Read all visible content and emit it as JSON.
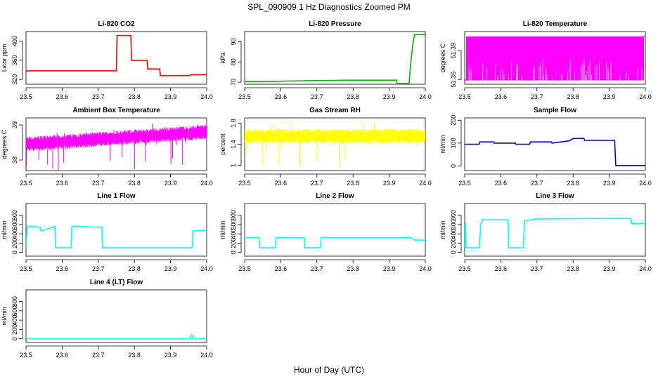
{
  "title": "SPL_090909  1 Hz Diagnostics Zoomed PM",
  "xlabel": "Hour of Day (UTC)",
  "chart_data": [
    {
      "type": "line",
      "title": "Li-820 CO2",
      "ylabel": "Licor ppm",
      "color": "#ff0000",
      "xlim": [
        23.5,
        24.0
      ],
      "ylim": [
        310,
        420
      ],
      "xticks": [
        "23.5",
        "23.6",
        "23.7",
        "23.8",
        "23.9",
        "24.0"
      ],
      "yticks": [
        320,
        360,
        400
      ],
      "x": [
        23.5,
        23.6,
        23.7,
        23.75,
        23.752,
        23.79,
        23.792,
        23.835,
        23.837,
        23.87,
        23.872,
        23.95,
        23.96,
        23.962,
        24.0
      ],
      "y": [
        338,
        338,
        338,
        338,
        412,
        412,
        360,
        360,
        342,
        342,
        328,
        328,
        330,
        330,
        330
      ]
    },
    {
      "type": "line",
      "title": "Li-820 Pressure",
      "ylabel": "kPa",
      "color": "#00b000",
      "xlim": [
        23.5,
        24.0
      ],
      "ylim": [
        69,
        95
      ],
      "xticks": [
        "23.5",
        "23.6",
        "23.7",
        "23.8",
        "23.9",
        "24.0"
      ],
      "yticks": [
        70,
        80,
        90
      ],
      "x": [
        23.5,
        23.6,
        23.7,
        23.8,
        23.85,
        23.92,
        23.922,
        23.955,
        23.96,
        23.965,
        23.97,
        24.0
      ],
      "y": [
        70.3,
        70.5,
        70.8,
        71.0,
        71.0,
        71.0,
        69.3,
        69.3,
        80,
        88,
        93.5,
        93.5
      ]
    },
    {
      "type": "line",
      "title": "Li-820 Temperature",
      "ylabel": "degrees C",
      "color": "#ff00ff",
      "xlim": [
        23.5,
        24.0
      ],
      "ylim": [
        51.355,
        51.41
      ],
      "xticks": [
        "23.5",
        "23.6",
        "23.7",
        "23.8",
        "23.9",
        "24.0"
      ],
      "yticks": [
        51.36,
        51.39
      ],
      "x": [
        23.5,
        24.0
      ],
      "y": [
        51.359,
        51.405
      ]
    },
    {
      "type": "line",
      "title": "Ambient Box Temperature",
      "ylabel": "degrees C",
      "color": "#ff00ff",
      "xlim": [
        23.5,
        24.0
      ],
      "ylim": [
        37.7,
        39.2
      ],
      "xticks": [
        "23.5",
        "23.6",
        "23.7",
        "23.8",
        "23.9",
        "24.0"
      ],
      "yticks": [
        38.0,
        39.0
      ],
      "x": [
        23.5,
        23.6,
        23.7,
        23.8,
        23.9,
        24.0
      ],
      "y": [
        38.45,
        38.5,
        38.55,
        38.65,
        38.7,
        38.8
      ]
    },
    {
      "type": "line",
      "title": "Gas Stream RH",
      "ylabel": "percent",
      "color": "#ffff00",
      "xlim": [
        23.5,
        24.0
      ],
      "ylim": [
        0.9,
        1.9
      ],
      "xticks": [
        "23.5",
        "23.6",
        "23.7",
        "23.8",
        "23.9",
        "24.0"
      ],
      "yticks": [
        1.0,
        1.4,
        1.8
      ],
      "x": [
        23.5,
        24.0
      ],
      "y": [
        1.55,
        1.55
      ]
    },
    {
      "type": "line",
      "title": "Sample Flow",
      "ylabel": "ml/min",
      "color": "#0000cc",
      "xlim": [
        23.5,
        24.0
      ],
      "ylim": [
        -20,
        210
      ],
      "xticks": [
        "23.5",
        "23.6",
        "23.7",
        "23.8",
        "23.9",
        "24.0"
      ],
      "yticks": [
        0,
        100,
        200
      ],
      "x": [
        23.5,
        23.54,
        23.542,
        23.58,
        23.582,
        23.64,
        23.642,
        23.68,
        23.682,
        23.74,
        23.742,
        23.79,
        23.8,
        23.83,
        23.832,
        23.915,
        23.918,
        24.0
      ],
      "y": [
        95,
        95,
        105,
        105,
        100,
        100,
        95,
        95,
        105,
        105,
        100,
        110,
        120,
        120,
        112,
        112,
        2,
        2
      ]
    },
    {
      "type": "line",
      "title": "Line 1 Flow",
      "ylabel": "ml/min",
      "color": "#00ffff",
      "xlim": [
        23.5,
        24.0
      ],
      "ylim": [
        -80,
        1050
      ],
      "xticks": [
        "23.5",
        "23.6",
        "23.7",
        "23.8",
        "23.9",
        "24.0"
      ],
      "yticks": [
        0,
        200,
        400,
        600,
        800
      ],
      "x": [
        23.5,
        23.503,
        23.505,
        23.54,
        23.542,
        23.58,
        23.582,
        23.625,
        23.627,
        23.71,
        23.712,
        23.96,
        23.962,
        24.0
      ],
      "y": [
        100,
        520,
        560,
        540,
        460,
        560,
        100,
        100,
        560,
        540,
        100,
        100,
        460,
        480
      ]
    },
    {
      "type": "line",
      "title": "Line 2 Flow",
      "ylabel": "ml/min",
      "color": "#00ffff",
      "xlim": [
        23.5,
        24.0
      ],
      "ylim": [
        -80,
        1050
      ],
      "xticks": [
        "23.5",
        "23.6",
        "23.7",
        "23.8",
        "23.9",
        "24.0"
      ],
      "yticks": [
        0,
        200,
        400,
        600,
        800
      ],
      "x": [
        23.5,
        23.54,
        23.542,
        23.585,
        23.587,
        23.665,
        23.667,
        23.71,
        23.712,
        23.96,
        23.97,
        24.0
      ],
      "y": [
        320,
        320,
        100,
        100,
        320,
        320,
        100,
        100,
        320,
        320,
        270,
        260
      ]
    },
    {
      "type": "line",
      "title": "Line 3 Flow",
      "ylabel": "ml/min",
      "color": "#00ffff",
      "xlim": [
        23.5,
        24.0
      ],
      "ylim": [
        -80,
        1050
      ],
      "xticks": [
        "23.5",
        "23.6",
        "23.7",
        "23.8",
        "23.9",
        "24.0"
      ],
      "yticks": [
        0,
        200,
        400,
        600,
        800
      ],
      "x": [
        23.5,
        23.502,
        23.504,
        23.54,
        23.545,
        23.55,
        23.62,
        23.622,
        23.662,
        23.666,
        23.7,
        23.9,
        23.96,
        23.962,
        24.0
      ],
      "y": [
        100,
        650,
        100,
        100,
        620,
        700,
        700,
        100,
        100,
        680,
        720,
        730,
        730,
        620,
        620
      ]
    },
    {
      "type": "line",
      "title": "Line 4 (LT) Flow",
      "ylabel": "ml/min",
      "color": "#00ffff",
      "xlim": [
        23.5,
        24.0
      ],
      "ylim": [
        -80,
        1050
      ],
      "xticks": [
        "23.5",
        "23.6",
        "23.7",
        "23.8",
        "23.9",
        "24.0"
      ],
      "yticks": [
        0,
        200,
        400,
        600,
        800
      ],
      "x": [
        23.5,
        23.955,
        23.957,
        23.96,
        23.962,
        24.0
      ],
      "y": [
        3,
        3,
        80,
        80,
        3,
        3
      ]
    }
  ]
}
